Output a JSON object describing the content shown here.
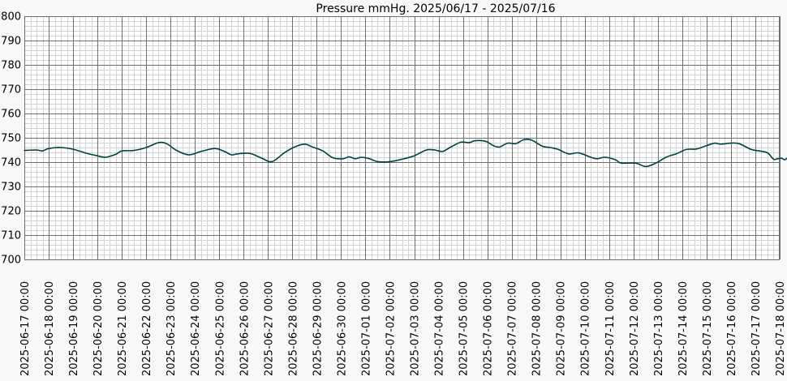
{
  "chart_data": {
    "type": "line",
    "title": "Pressure mmHg. 2025/06/17 - 2025/07/16",
    "ylim": [
      700,
      800
    ],
    "y_ticks": [
      "800",
      "790",
      "780",
      "770",
      "760",
      "750",
      "740",
      "730",
      "720",
      "710",
      "700"
    ],
    "x_tick_labels": [
      "2025-06-17 00:00",
      "2025-06-18 00:00",
      "2025-06-19 00:00",
      "2025-06-20 00:00",
      "2025-06-21 00:00",
      "2025-06-22 00:00",
      "2025-06-23 00:00",
      "2025-06-24 00:00",
      "2025-06-25 00:00",
      "2025-06-26 00:00",
      "2025-06-27 00:00",
      "2025-06-28 00:00",
      "2025-06-29 00:00",
      "2025-06-30 00:00",
      "2025-07-01 00:00",
      "2025-07-02 00:00",
      "2025-07-03 00:00",
      "2025-07-04 00:00",
      "2025-07-05 00:00",
      "2025-07-06 00:00",
      "2025-07-07 00:00",
      "2025-07-08 00:00",
      "2025-07-09 00:00",
      "2025-07-10 00:00",
      "2025-07-11 00:00",
      "2025-07-12 00:00",
      "2025-07-13 00:00",
      "2025-07-14 00:00",
      "2025-07-15 00:00",
      "2025-07-16 00:00",
      "2025-07-17 00:00",
      "2025-07-18 00:00"
    ],
    "xlim": [
      "2025-06-17 00:00",
      "2025-07-18 00:00"
    ],
    "grid": true,
    "series": [
      {
        "color": "#004040",
        "points": [
          [
            "2025-06-17 00:00",
            744.8
          ],
          [
            "2025-06-17 12:00",
            745.0
          ],
          [
            "2025-06-17 18:00",
            744.6
          ],
          [
            "2025-06-18 00:00",
            745.6
          ],
          [
            "2025-06-18 12:00",
            746.0
          ],
          [
            "2025-06-19 00:00",
            745.3
          ],
          [
            "2025-06-19 12:00",
            743.8
          ],
          [
            "2025-06-20 00:00",
            742.6
          ],
          [
            "2025-06-20 08:00",
            742.0
          ],
          [
            "2025-06-20 18:00",
            743.2
          ],
          [
            "2025-06-21 00:00",
            744.6
          ],
          [
            "2025-06-21 12:00",
            744.8
          ],
          [
            "2025-06-22 00:00",
            746.0
          ],
          [
            "2025-06-22 12:00",
            748.0
          ],
          [
            "2025-06-22 20:00",
            747.6
          ],
          [
            "2025-06-23 06:00",
            744.8
          ],
          [
            "2025-06-23 18:00",
            743.0
          ],
          [
            "2025-06-24 06:00",
            744.4
          ],
          [
            "2025-06-24 20:00",
            745.6
          ],
          [
            "2025-06-25 06:00",
            744.2
          ],
          [
            "2025-06-25 12:00",
            743.0
          ],
          [
            "2025-06-25 18:00",
            743.4
          ],
          [
            "2025-06-26 06:00",
            743.6
          ],
          [
            "2025-06-26 18:00",
            741.6
          ],
          [
            "2025-06-27 04:00",
            740.2
          ],
          [
            "2025-06-27 16:00",
            743.8
          ],
          [
            "2025-06-28 02:00",
            746.2
          ],
          [
            "2025-06-28 12:00",
            747.4
          ],
          [
            "2025-06-28 20:00",
            746.2
          ],
          [
            "2025-06-29 06:00",
            744.6
          ],
          [
            "2025-06-29 16:00",
            741.8
          ],
          [
            "2025-06-30 02:00",
            741.4
          ],
          [
            "2025-06-30 08:00",
            742.2
          ],
          [
            "2025-06-30 14:00",
            741.4
          ],
          [
            "2025-06-30 20:00",
            742.0
          ],
          [
            "2025-07-01 04:00",
            741.4
          ],
          [
            "2025-07-01 12:00",
            740.2
          ],
          [
            "2025-07-02 00:00",
            740.2
          ],
          [
            "2025-07-02 12:00",
            741.2
          ],
          [
            "2025-07-03 00:00",
            742.6
          ],
          [
            "2025-07-03 12:00",
            745.0
          ],
          [
            "2025-07-03 20:00",
            745.0
          ],
          [
            "2025-07-04 04:00",
            744.4
          ],
          [
            "2025-07-04 12:00",
            746.2
          ],
          [
            "2025-07-04 22:00",
            748.2
          ],
          [
            "2025-07-05 06:00",
            748.0
          ],
          [
            "2025-07-05 12:00",
            748.8
          ],
          [
            "2025-07-05 22:00",
            748.6
          ],
          [
            "2025-07-06 06:00",
            746.8
          ],
          [
            "2025-07-06 12:00",
            746.2
          ],
          [
            "2025-07-06 20:00",
            747.8
          ],
          [
            "2025-07-07 04:00",
            747.6
          ],
          [
            "2025-07-07 12:00",
            749.2
          ],
          [
            "2025-07-07 20:00",
            749.0
          ],
          [
            "2025-07-08 06:00",
            746.6
          ],
          [
            "2025-07-08 14:00",
            746.0
          ],
          [
            "2025-07-08 22:00",
            745.2
          ],
          [
            "2025-07-09 08:00",
            743.4
          ],
          [
            "2025-07-09 18:00",
            743.8
          ],
          [
            "2025-07-10 06:00",
            742.0
          ],
          [
            "2025-07-10 12:00",
            741.4
          ],
          [
            "2025-07-10 20:00",
            742.0
          ],
          [
            "2025-07-11 06:00",
            741.0
          ],
          [
            "2025-07-11 12:00",
            739.6
          ],
          [
            "2025-07-12 02:00",
            739.6
          ],
          [
            "2025-07-12 12:00",
            738.2
          ],
          [
            "2025-07-12 22:00",
            739.6
          ],
          [
            "2025-07-13 08:00",
            742.0
          ],
          [
            "2025-07-13 18:00",
            743.4
          ],
          [
            "2025-07-14 04:00",
            745.2
          ],
          [
            "2025-07-14 14:00",
            745.4
          ],
          [
            "2025-07-15 00:00",
            746.8
          ],
          [
            "2025-07-15 08:00",
            747.8
          ],
          [
            "2025-07-15 14:00",
            747.4
          ],
          [
            "2025-07-16 00:00",
            747.8
          ],
          [
            "2025-07-16 08:00",
            747.6
          ],
          [
            "2025-07-16 20:00",
            745.2
          ],
          [
            "2025-07-17 04:00",
            744.6
          ],
          [
            "2025-07-17 12:00",
            743.8
          ],
          [
            "2025-07-17 18:00",
            741.2
          ],
          [
            "2025-07-17 22:00",
            741.4
          ],
          [
            "2025-07-18 02:00",
            741.6
          ],
          [
            "2025-07-18 05:00",
            741.0
          ],
          [
            "2025-07-18 09:00",
            742.4
          ]
        ]
      }
    ],
    "style": {
      "background": "#f8f8f8",
      "plot_background": "#ffffff",
      "major_grid": "#707070",
      "minor_grid": "#d4d4d4",
      "line": "#004040"
    }
  }
}
